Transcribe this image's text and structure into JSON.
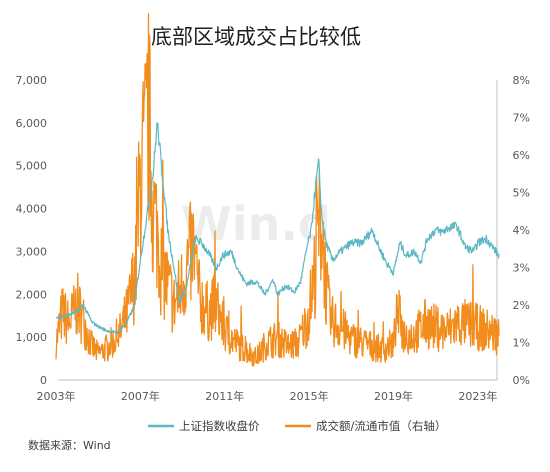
{
  "watermark": "Win.d",
  "source": "数据来源：Wind",
  "chart_data": {
    "type": "line",
    "title": "底部区域成交占比较低",
    "xlim": [
      2003,
      2024
    ],
    "x_ticks": [
      "2003年",
      "2007年",
      "2011年",
      "2015年",
      "2019年",
      "2023年"
    ],
    "x_tick_values": [
      2003,
      2007,
      2011,
      2015,
      2019,
      2023
    ],
    "y_left": {
      "ylim": [
        0,
        7000
      ],
      "ticks": [
        "0",
        "1,000",
        "2,000",
        "3,000",
        "4,000",
        "5,000",
        "6,000",
        "7,000"
      ]
    },
    "y_right": {
      "ylim": [
        0,
        8
      ],
      "ticks": [
        "0%",
        "1%",
        "2%",
        "3%",
        "4%",
        "5%",
        "6%",
        "7%",
        "8%"
      ]
    },
    "legend_position": "bottom",
    "series": [
      {
        "name": "上证指数收盘价",
        "axis": "left",
        "color": "#5bb8c4",
        "x": [
          2003.0,
          2003.5,
          2004.0,
          2004.3,
          2004.7,
          2005.0,
          2005.4,
          2005.9,
          2006.3,
          2006.7,
          2007.0,
          2007.3,
          2007.6,
          2007.8,
          2008.0,
          2008.3,
          2008.6,
          2008.85,
          2009.2,
          2009.6,
          2009.9,
          2010.3,
          2010.6,
          2010.9,
          2011.3,
          2011.7,
          2012.0,
          2012.5,
          2012.9,
          2013.3,
          2013.5,
          2013.9,
          2014.3,
          2014.6,
          2014.9,
          2015.1,
          2015.3,
          2015.45,
          2015.6,
          2015.8,
          2016.1,
          2016.5,
          2017.0,
          2017.5,
          2018.0,
          2018.3,
          2018.7,
          2019.0,
          2019.3,
          2019.6,
          2020.0,
          2020.3,
          2020.6,
          2021.0,
          2021.3,
          2021.6,
          2022.0,
          2022.4,
          2022.8,
          2023.0,
          2023.4,
          2023.7,
          2024.0
        ],
        "values": [
          1450,
          1500,
          1600,
          1750,
          1350,
          1250,
          1150,
          1100,
          1300,
          1700,
          2800,
          3800,
          4800,
          6000,
          5000,
          3500,
          2600,
          1800,
          2200,
          3300,
          3200,
          2900,
          2600,
          2900,
          3000,
          2500,
          2250,
          2300,
          2000,
          2350,
          2000,
          2200,
          2050,
          2300,
          3100,
          3500,
          4500,
          5100,
          3800,
          3200,
          2800,
          3000,
          3200,
          3200,
          3500,
          3100,
          2700,
          2500,
          3200,
          2900,
          3000,
          2750,
          3300,
          3500,
          3450,
          3550,
          3600,
          3100,
          3000,
          3200,
          3300,
          3100,
          2900
        ]
      },
      {
        "name": "成交额/流通市值（右轴）",
        "axis": "right",
        "color": "#f28c1c",
        "x": [
          2003.0,
          2003.3,
          2003.6,
          2004.0,
          2004.3,
          2004.7,
          2005.0,
          2005.5,
          2006.0,
          2006.4,
          2006.8,
          2007.0,
          2007.2,
          2007.4,
          2007.6,
          2007.8,
          2008.0,
          2008.3,
          2008.6,
          2008.9,
          2009.2,
          2009.5,
          2009.8,
          2010.2,
          2010.6,
          2011.0,
          2011.5,
          2012.0,
          2012.5,
          2013.0,
          2013.5,
          2014.0,
          2014.5,
          2014.9,
          2015.2,
          2015.4,
          2015.6,
          2015.8,
          2016.0,
          2016.5,
          2017.0,
          2017.5,
          2018.0,
          2018.5,
          2019.0,
          2019.2,
          2019.5,
          2020.0,
          2020.5,
          2021.0,
          2021.5,
          2022.0,
          2022.5,
          2023.0,
          2023.5,
          2024.0
        ],
        "values": [
          1.0,
          1.8,
          1.5,
          2.0,
          1.6,
          0.9,
          0.7,
          0.9,
          1.2,
          1.8,
          3.0,
          5.5,
          6.0,
          7.0,
          4.5,
          4.0,
          3.0,
          2.5,
          2.0,
          2.4,
          3.0,
          3.5,
          2.2,
          1.8,
          2.0,
          1.3,
          1.0,
          0.8,
          0.6,
          1.0,
          1.1,
          0.9,
          1.0,
          1.6,
          2.5,
          3.8,
          4.3,
          2.5,
          1.6,
          1.4,
          1.1,
          1.0,
          0.9,
          0.8,
          1.0,
          1.8,
          1.2,
          1.2,
          1.5,
          1.4,
          1.3,
          1.5,
          1.5,
          1.4,
          1.3,
          1.2
        ]
      }
    ]
  }
}
